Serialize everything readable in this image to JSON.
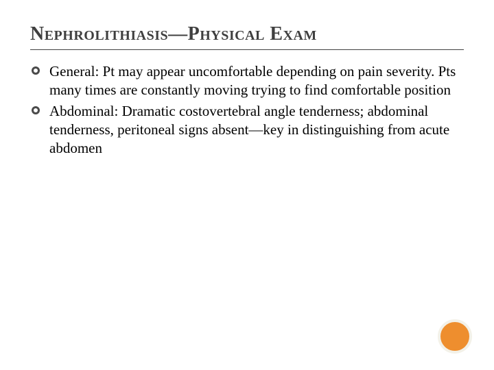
{
  "slide": {
    "background_color": "#ffffff",
    "title": {
      "text": "Nephrolithiasis—Physical Exam",
      "color": "#3f3f3f",
      "fontsize": 28,
      "underline_color": "#404040"
    },
    "body": {
      "fontsize": 21,
      "line_height": 1.28,
      "color": "#000000",
      "bullet_border_color": "#4a4a4a",
      "items": [
        "General: Pt may appear uncomfortable depending on pain severity.  Pts many times are constantly moving trying to find comfortable position",
        "Abdominal: Dramatic costovertebral angle tenderness; abdominal tenderness, peritoneal signs absent—key in distinguishing from acute abdomen"
      ]
    },
    "decor": {
      "circle_fill": "#ee8e2e",
      "circle_border": "#f3f1e8"
    }
  }
}
